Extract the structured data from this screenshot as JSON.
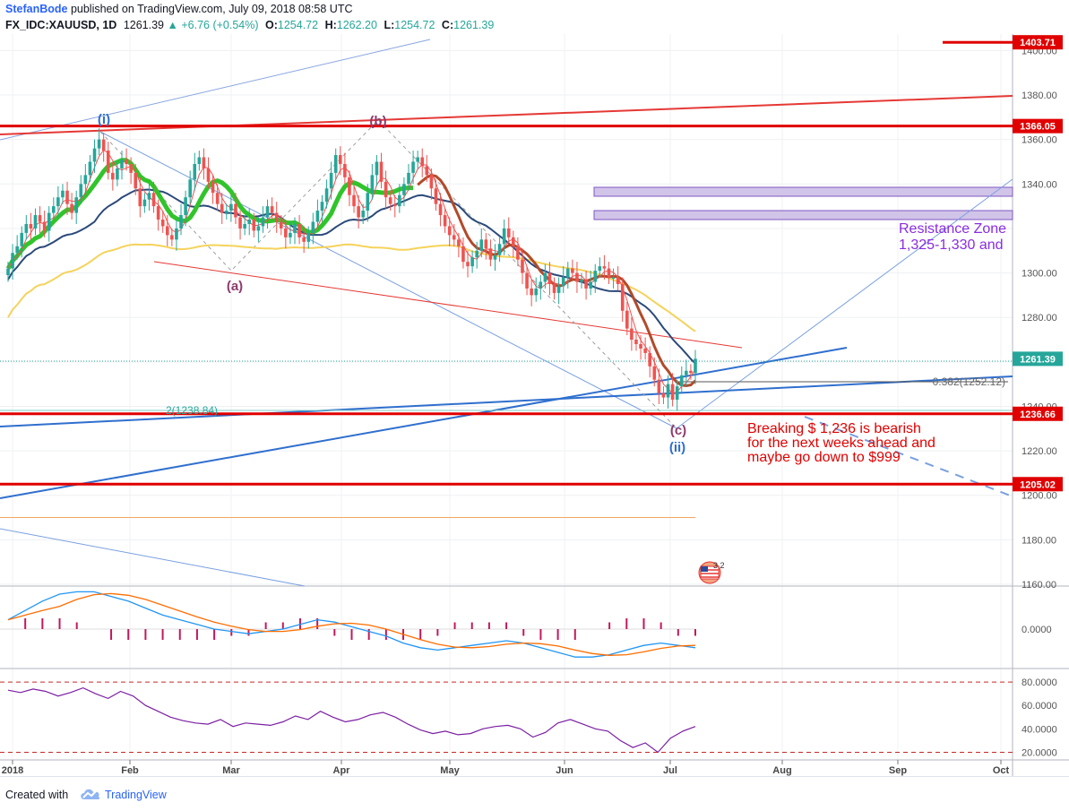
{
  "header": {
    "author": "StefanBode",
    "published_text": "published on TradingView.com, July 09, 2018 08:58 UTC",
    "symbol": "FX_IDC:XAUUSD, 1D",
    "last": "1261.39",
    "change": "+6.76 (+0.54%)",
    "open_label": "O:",
    "open": "1254.72",
    "high_label": "H:",
    "high": "1262.20",
    "low_label": "L:",
    "low": "1254.72",
    "close_label": "C:",
    "close": "1261.39"
  },
  "footer": {
    "created_with": "Created with",
    "brand": "TradingView"
  },
  "colors": {
    "up": "#26a69a",
    "down": "#ef5350",
    "red_level": "#e00000",
    "blue_line": "#2f6fce",
    "purple_zone": "#b39ddb",
    "ma_green": "#31c42b",
    "ma_blue": "#2b4a7a",
    "ma_yellow": "#f5d35b",
    "ma_brown": "#b34a2a",
    "rsi": "#7b1fa2"
  },
  "chart_data": [
    {
      "type": "candlestick",
      "title": "",
      "ylim": [
        1160,
        1405
      ],
      "y_ticks": [
        "1160.00",
        "1180.00",
        "1200.00",
        "1220.00",
        "1240.00",
        "1260.00",
        "1280.00",
        "1300.00",
        "1320.00",
        "1340.00",
        "1360.00",
        "1380.00",
        "1400.00"
      ],
      "x_tick_labels": [
        "2018",
        "Feb",
        "Mar",
        "Apr",
        "May",
        "Jun",
        "Jul",
        "Aug",
        "Sep",
        "Oct"
      ],
      "price_labels": [
        "1403.71",
        "1366.05",
        "1261.39",
        "1236.66",
        "1205.02"
      ],
      "horizontal_levels": [
        1403.71,
        1366.05,
        1236.66,
        1205.02,
        1190
      ],
      "closes": [
        1302,
        1309,
        1312,
        1318,
        1322,
        1320,
        1326,
        1323,
        1319,
        1327,
        1330,
        1334,
        1337,
        1331,
        1327,
        1334,
        1340,
        1344,
        1350,
        1356,
        1360,
        1355,
        1345,
        1342,
        1347,
        1351,
        1349,
        1345,
        1338,
        1330,
        1333,
        1336,
        1330,
        1324,
        1321,
        1317,
        1315,
        1320,
        1326,
        1334,
        1342,
        1349,
        1352,
        1347,
        1341,
        1336,
        1331,
        1327,
        1328,
        1331,
        1325,
        1320,
        1322,
        1324,
        1319,
        1321,
        1325,
        1330,
        1327,
        1323,
        1320,
        1316,
        1318,
        1322,
        1316,
        1314,
        1318,
        1323,
        1328,
        1332,
        1338,
        1345,
        1353,
        1349,
        1343,
        1335,
        1330,
        1325,
        1328,
        1336,
        1344,
        1350,
        1341,
        1334,
        1331,
        1330,
        1335,
        1340,
        1345,
        1350,
        1352,
        1348,
        1344,
        1338,
        1331,
        1326,
        1321,
        1317,
        1315,
        1312,
        1305,
        1303,
        1307,
        1310,
        1315,
        1311,
        1306,
        1308,
        1313,
        1320,
        1316,
        1312,
        1306,
        1300,
        1293,
        1290,
        1293,
        1296,
        1300,
        1295,
        1291,
        1294,
        1298,
        1302,
        1300,
        1296,
        1297,
        1293,
        1296,
        1301,
        1303,
        1302,
        1298,
        1298,
        1295,
        1283,
        1275,
        1270,
        1268,
        1266,
        1264,
        1258,
        1252,
        1246,
        1244,
        1250,
        1243,
        1249,
        1254,
        1256,
        1255,
        1261.39
      ],
      "annotations": [
        "(i)",
        "(b)",
        "(a)",
        "(c)",
        "(ii)",
        "0.382(1252.12)",
        "2(1238.84)"
      ],
      "zone_text": [
        "Resistance Zone",
        "1,325-1,330 and"
      ],
      "note_lines": [
        "Breaking $ 1,236 is bearish",
        "for the next weeks ahead and",
        "maybe go down to $999"
      ],
      "event_badge": "3 2"
    },
    {
      "type": "line",
      "title": "",
      "y_ticks": [
        "0.0000"
      ],
      "series": [
        {
          "values": [
            4,
            8,
            12,
            15,
            16,
            16,
            14,
            12,
            9,
            6,
            4,
            2,
            0,
            -1,
            -2,
            -1,
            0,
            2,
            4,
            3,
            1,
            -1,
            -3,
            -6,
            -8,
            -9,
            -8,
            -7,
            -6,
            -5,
            -6,
            -8,
            -10,
            -12,
            -12,
            -11,
            -9,
            -7,
            -6,
            -7,
            -8
          ]
        }
      ]
    },
    {
      "type": "line",
      "title": "",
      "ylim": [
        15,
        90
      ],
      "y_ticks": [
        "80.0000",
        "60.0000",
        "40.0000",
        "20.0000"
      ],
      "series": [
        {
          "values": [
            73,
            71,
            74,
            72,
            68,
            71,
            75,
            70,
            66,
            72,
            68,
            60,
            55,
            50,
            47,
            45,
            44,
            48,
            42,
            45,
            44,
            43,
            46,
            51,
            48,
            55,
            50,
            46,
            48,
            52,
            54,
            50,
            44,
            39,
            36,
            38,
            35,
            36,
            40,
            42,
            43,
            40,
            33,
            37,
            45,
            48,
            44,
            40,
            38,
            30,
            24,
            28,
            20,
            32,
            38,
            42
          ]
        }
      ]
    }
  ]
}
